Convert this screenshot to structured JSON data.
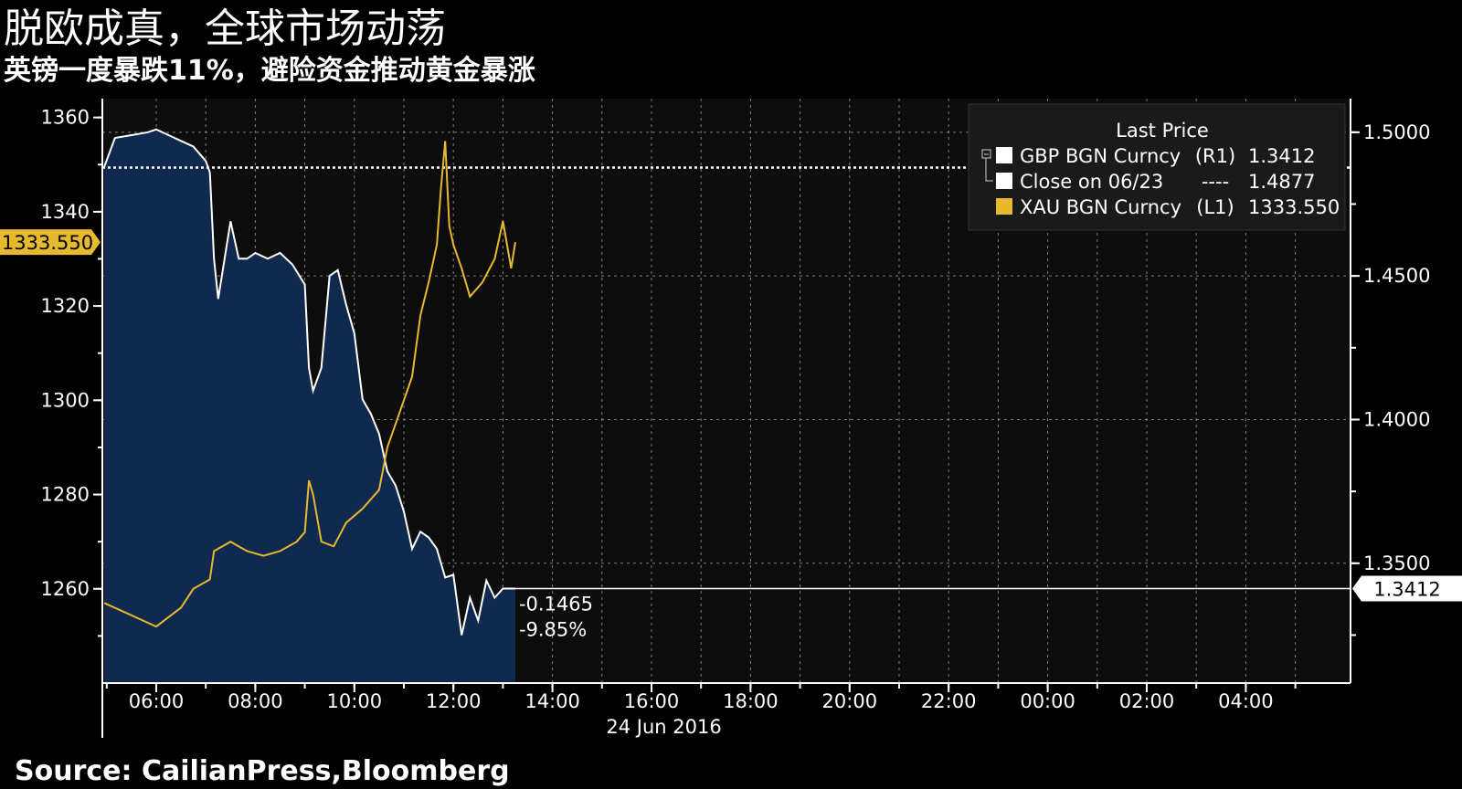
{
  "header": {
    "title": "脱欧成真，全球市场动荡",
    "subtitle": "英镑一度暴跌11%，避险资金推动黄金暴涨"
  },
  "footer": {
    "source": "Source: CailianPress,Bloomberg"
  },
  "colors": {
    "background": "#000000",
    "plot_bg": "#0d0d0d",
    "gbp": "#ffffff",
    "gbp_area": "#0f2a4e",
    "xau": "#e7b92e",
    "grid": "#9a9a9a"
  },
  "chart_data": {
    "type": "line",
    "date_label": "24 Jun 2016",
    "x_ticks": [
      "06:00",
      "08:00",
      "10:00",
      "12:00",
      "14:00",
      "16:00",
      "18:00",
      "20:00",
      "22:00",
      "00:00",
      "02:00",
      "04:00"
    ],
    "left_axis": {
      "ticks": [
        1260,
        1280,
        1300,
        1320,
        1340,
        1360
      ],
      "ylim": [
        1240,
        1364
      ]
    },
    "right_axis": {
      "ticks": [
        "1.3500",
        "1.4000",
        "1.4500",
        "1.5000"
      ],
      "ylim": [
        1.3083,
        1.5117
      ]
    },
    "legend": {
      "title": "Last Price",
      "entries": [
        {
          "name": "GBP BGN Curncy",
          "axis": "(R1)",
          "value": "1.3412",
          "color": "#ffffff"
        },
        {
          "name": "Close on 06/23",
          "axis": "----",
          "value": "1.4877",
          "color": "#ffffff"
        },
        {
          "name": "XAU BGN Curncy",
          "axis": "(L1)",
          "value": "1333.550",
          "color": "#e7b92e"
        }
      ],
      "placement": "top-right"
    },
    "last_value_labels": {
      "xau": "1333.550",
      "gbp": "1.3412"
    },
    "change_labels": {
      "abs": "-0.1465",
      "pct": "-9.85%"
    },
    "reference_line": {
      "name": "Close on 06/23",
      "value": 1.4877
    },
    "series": [
      {
        "name": "GBP BGN Curncy",
        "axis": "right",
        "x": [
          "04:57",
          "05:10",
          "05:30",
          "05:50",
          "06:00",
          "06:15",
          "06:30",
          "06:45",
          "07:00",
          "07:05",
          "07:10",
          "07:15",
          "07:20",
          "07:30",
          "07:40",
          "07:50",
          "08:00",
          "08:15",
          "08:30",
          "08:45",
          "09:00",
          "09:05",
          "09:10",
          "09:20",
          "09:30",
          "09:40",
          "09:50",
          "10:00",
          "10:10",
          "10:20",
          "10:30",
          "10:40",
          "10:50",
          "11:00",
          "11:10",
          "11:20",
          "11:30",
          "11:40",
          "11:50",
          "12:00",
          "12:10",
          "12:20",
          "12:30",
          "12:40",
          "12:50",
          "13:00",
          "13:10",
          "13:15"
        ],
        "y": [
          1.488,
          1.498,
          1.499,
          1.5,
          1.501,
          1.499,
          1.497,
          1.495,
          1.49,
          1.486,
          1.456,
          1.442,
          1.451,
          1.469,
          1.456,
          1.456,
          1.458,
          1.456,
          1.458,
          1.454,
          1.447,
          1.418,
          1.41,
          1.418,
          1.45,
          1.452,
          1.44,
          1.43,
          1.407,
          1.402,
          1.395,
          1.382,
          1.377,
          1.368,
          1.355,
          1.361,
          1.359,
          1.355,
          1.345,
          1.346,
          1.325,
          1.338,
          1.33,
          1.344,
          1.338,
          1.3412,
          1.3412,
          1.3412
        ]
      },
      {
        "name": "XAU BGN Curncy",
        "axis": "left",
        "x": [
          "04:57",
          "06:00",
          "06:30",
          "06:45",
          "07:05",
          "07:10",
          "07:30",
          "07:50",
          "08:10",
          "08:30",
          "08:50",
          "09:00",
          "09:05",
          "09:10",
          "09:20",
          "09:35",
          "09:50",
          "10:10",
          "10:30",
          "10:40",
          "10:50",
          "11:00",
          "11:10",
          "11:20",
          "11:30",
          "11:40",
          "11:45",
          "11:50",
          "11:55",
          "12:00",
          "12:10",
          "12:20",
          "12:35",
          "12:50",
          "13:00",
          "13:10",
          "13:15"
        ],
        "y": [
          1257.0,
          1252.0,
          1256.0,
          1260.0,
          1262.0,
          1268.0,
          1270.0,
          1268.0,
          1267.0,
          1268.0,
          1270.0,
          1272.0,
          1283.0,
          1280.0,
          1270.0,
          1269.0,
          1274.0,
          1277.0,
          1281.0,
          1290.0,
          1295.0,
          1300.0,
          1305.0,
          1318.0,
          1325.0,
          1333.0,
          1345.0,
          1355.0,
          1337.0,
          1333.0,
          1328.0,
          1322.0,
          1325.0,
          1330.0,
          1338.0,
          1328.0,
          1333.55
        ]
      }
    ]
  }
}
